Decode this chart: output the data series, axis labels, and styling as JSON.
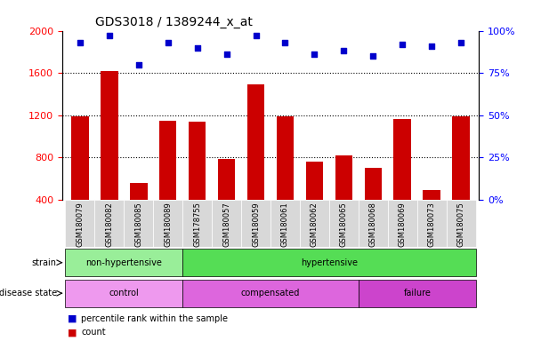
{
  "title": "GDS3018 / 1389244_x_at",
  "samples": [
    "GSM180079",
    "GSM180082",
    "GSM180085",
    "GSM180089",
    "GSM178755",
    "GSM180057",
    "GSM180059",
    "GSM180061",
    "GSM180062",
    "GSM180065",
    "GSM180068",
    "GSM180069",
    "GSM180073",
    "GSM180075"
  ],
  "counts": [
    1190,
    1620,
    560,
    1150,
    1140,
    780,
    1490,
    1190,
    760,
    820,
    700,
    1160,
    490,
    1185
  ],
  "percentile": [
    93,
    97,
    80,
    93,
    90,
    86,
    97,
    93,
    86,
    88,
    85,
    92,
    91,
    93
  ],
  "ylim_left": [
    400,
    2000
  ],
  "ylim_right": [
    0,
    100
  ],
  "yticks_left": [
    400,
    800,
    1200,
    1600,
    2000
  ],
  "yticks_right": [
    0,
    25,
    50,
    75,
    100
  ],
  "hlines": [
    800,
    1200,
    1600
  ],
  "bar_color": "#cc0000",
  "dot_color": "#0000cc",
  "strain_labels": [
    {
      "text": "non-hypertensive",
      "start": 0,
      "end": 3,
      "color": "#99ee99"
    },
    {
      "text": "hypertensive",
      "start": 4,
      "end": 13,
      "color": "#55dd55"
    }
  ],
  "disease_labels": [
    {
      "text": "control",
      "start": 0,
      "end": 3,
      "color": "#ee99ee"
    },
    {
      "text": "compensated",
      "start": 4,
      "end": 9,
      "color": "#dd66dd"
    },
    {
      "text": "failure",
      "start": 10,
      "end": 13,
      "color": "#cc44cc"
    }
  ],
  "legend_count_label": "count",
  "legend_pct_label": "percentile rank within the sample",
  "strain_arrow_label": "strain",
  "disease_arrow_label": "disease state",
  "xtick_bg_color": "#d8d8d8",
  "title_fontsize": 10,
  "tick_fontsize": 8,
  "bar_width": 0.6
}
